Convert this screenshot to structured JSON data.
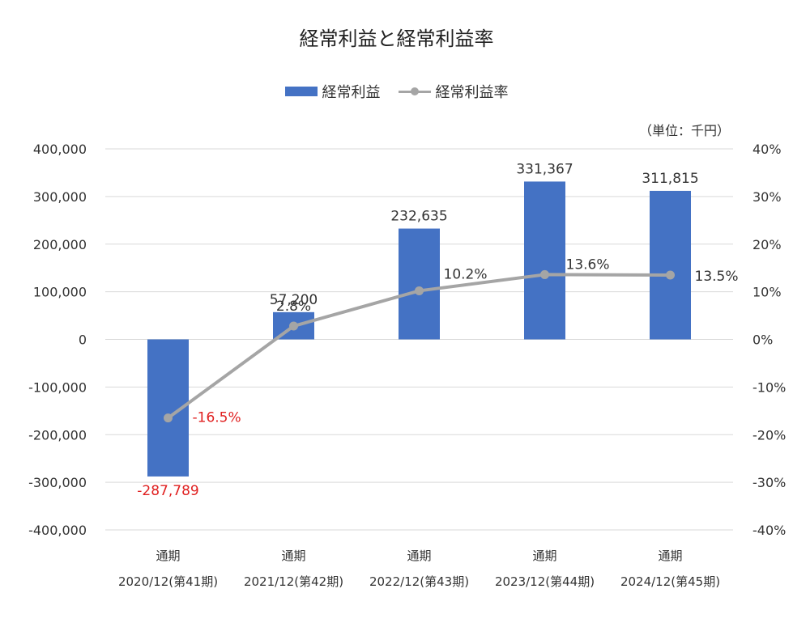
{
  "chart_data": {
    "type": "bar",
    "title": "経常利益と経常利益率",
    "unit_note": "（単位：千円）",
    "categories": [
      [
        "通期",
        "2020/12(第41期)"
      ],
      [
        "通期",
        "2021/12(第42期)"
      ],
      [
        "通期",
        "2022/12(第43期)"
      ],
      [
        "通期",
        "2023/12(第44期)"
      ],
      [
        "通期",
        "2024/12(第45期)"
      ]
    ],
    "series": [
      {
        "name": "経常利益",
        "kind": "bar",
        "axis": "left",
        "color": "#4472c4",
        "values": [
          -287789,
          57200,
          232635,
          331367,
          311815
        ],
        "labels": [
          "-287,789",
          "57,200",
          "232,635",
          "331,367",
          "311,815"
        ]
      },
      {
        "name": "経常利益率",
        "kind": "line",
        "axis": "right",
        "color": "#a5a5a5",
        "values": [
          -16.5,
          2.8,
          10.2,
          13.6,
          13.5
        ],
        "labels": [
          "-16.5%",
          "2.8%",
          "10.2%",
          "13.6%",
          "13.5%"
        ]
      }
    ],
    "y_left": {
      "range": [
        -400000,
        400000
      ],
      "ticks": [
        400000,
        300000,
        200000,
        100000,
        0,
        -100000,
        -200000,
        -300000,
        -400000
      ],
      "tick_labels": [
        "400,000",
        "300,000",
        "200,000",
        "100,000",
        "0",
        "-100,000",
        "-200,000",
        "-300,000",
        "-400,000"
      ]
    },
    "y_right": {
      "range": [
        -40,
        40
      ],
      "ticks": [
        40,
        30,
        20,
        10,
        0,
        -10,
        -20,
        -30,
        -40
      ],
      "tick_labels": [
        "40%",
        "30%",
        "20%",
        "10%",
        "0%",
        "-10%",
        "-20%",
        "-30%",
        "-40%"
      ]
    },
    "grid": true,
    "legend": "top",
    "negative_label_color": "#e02020"
  }
}
